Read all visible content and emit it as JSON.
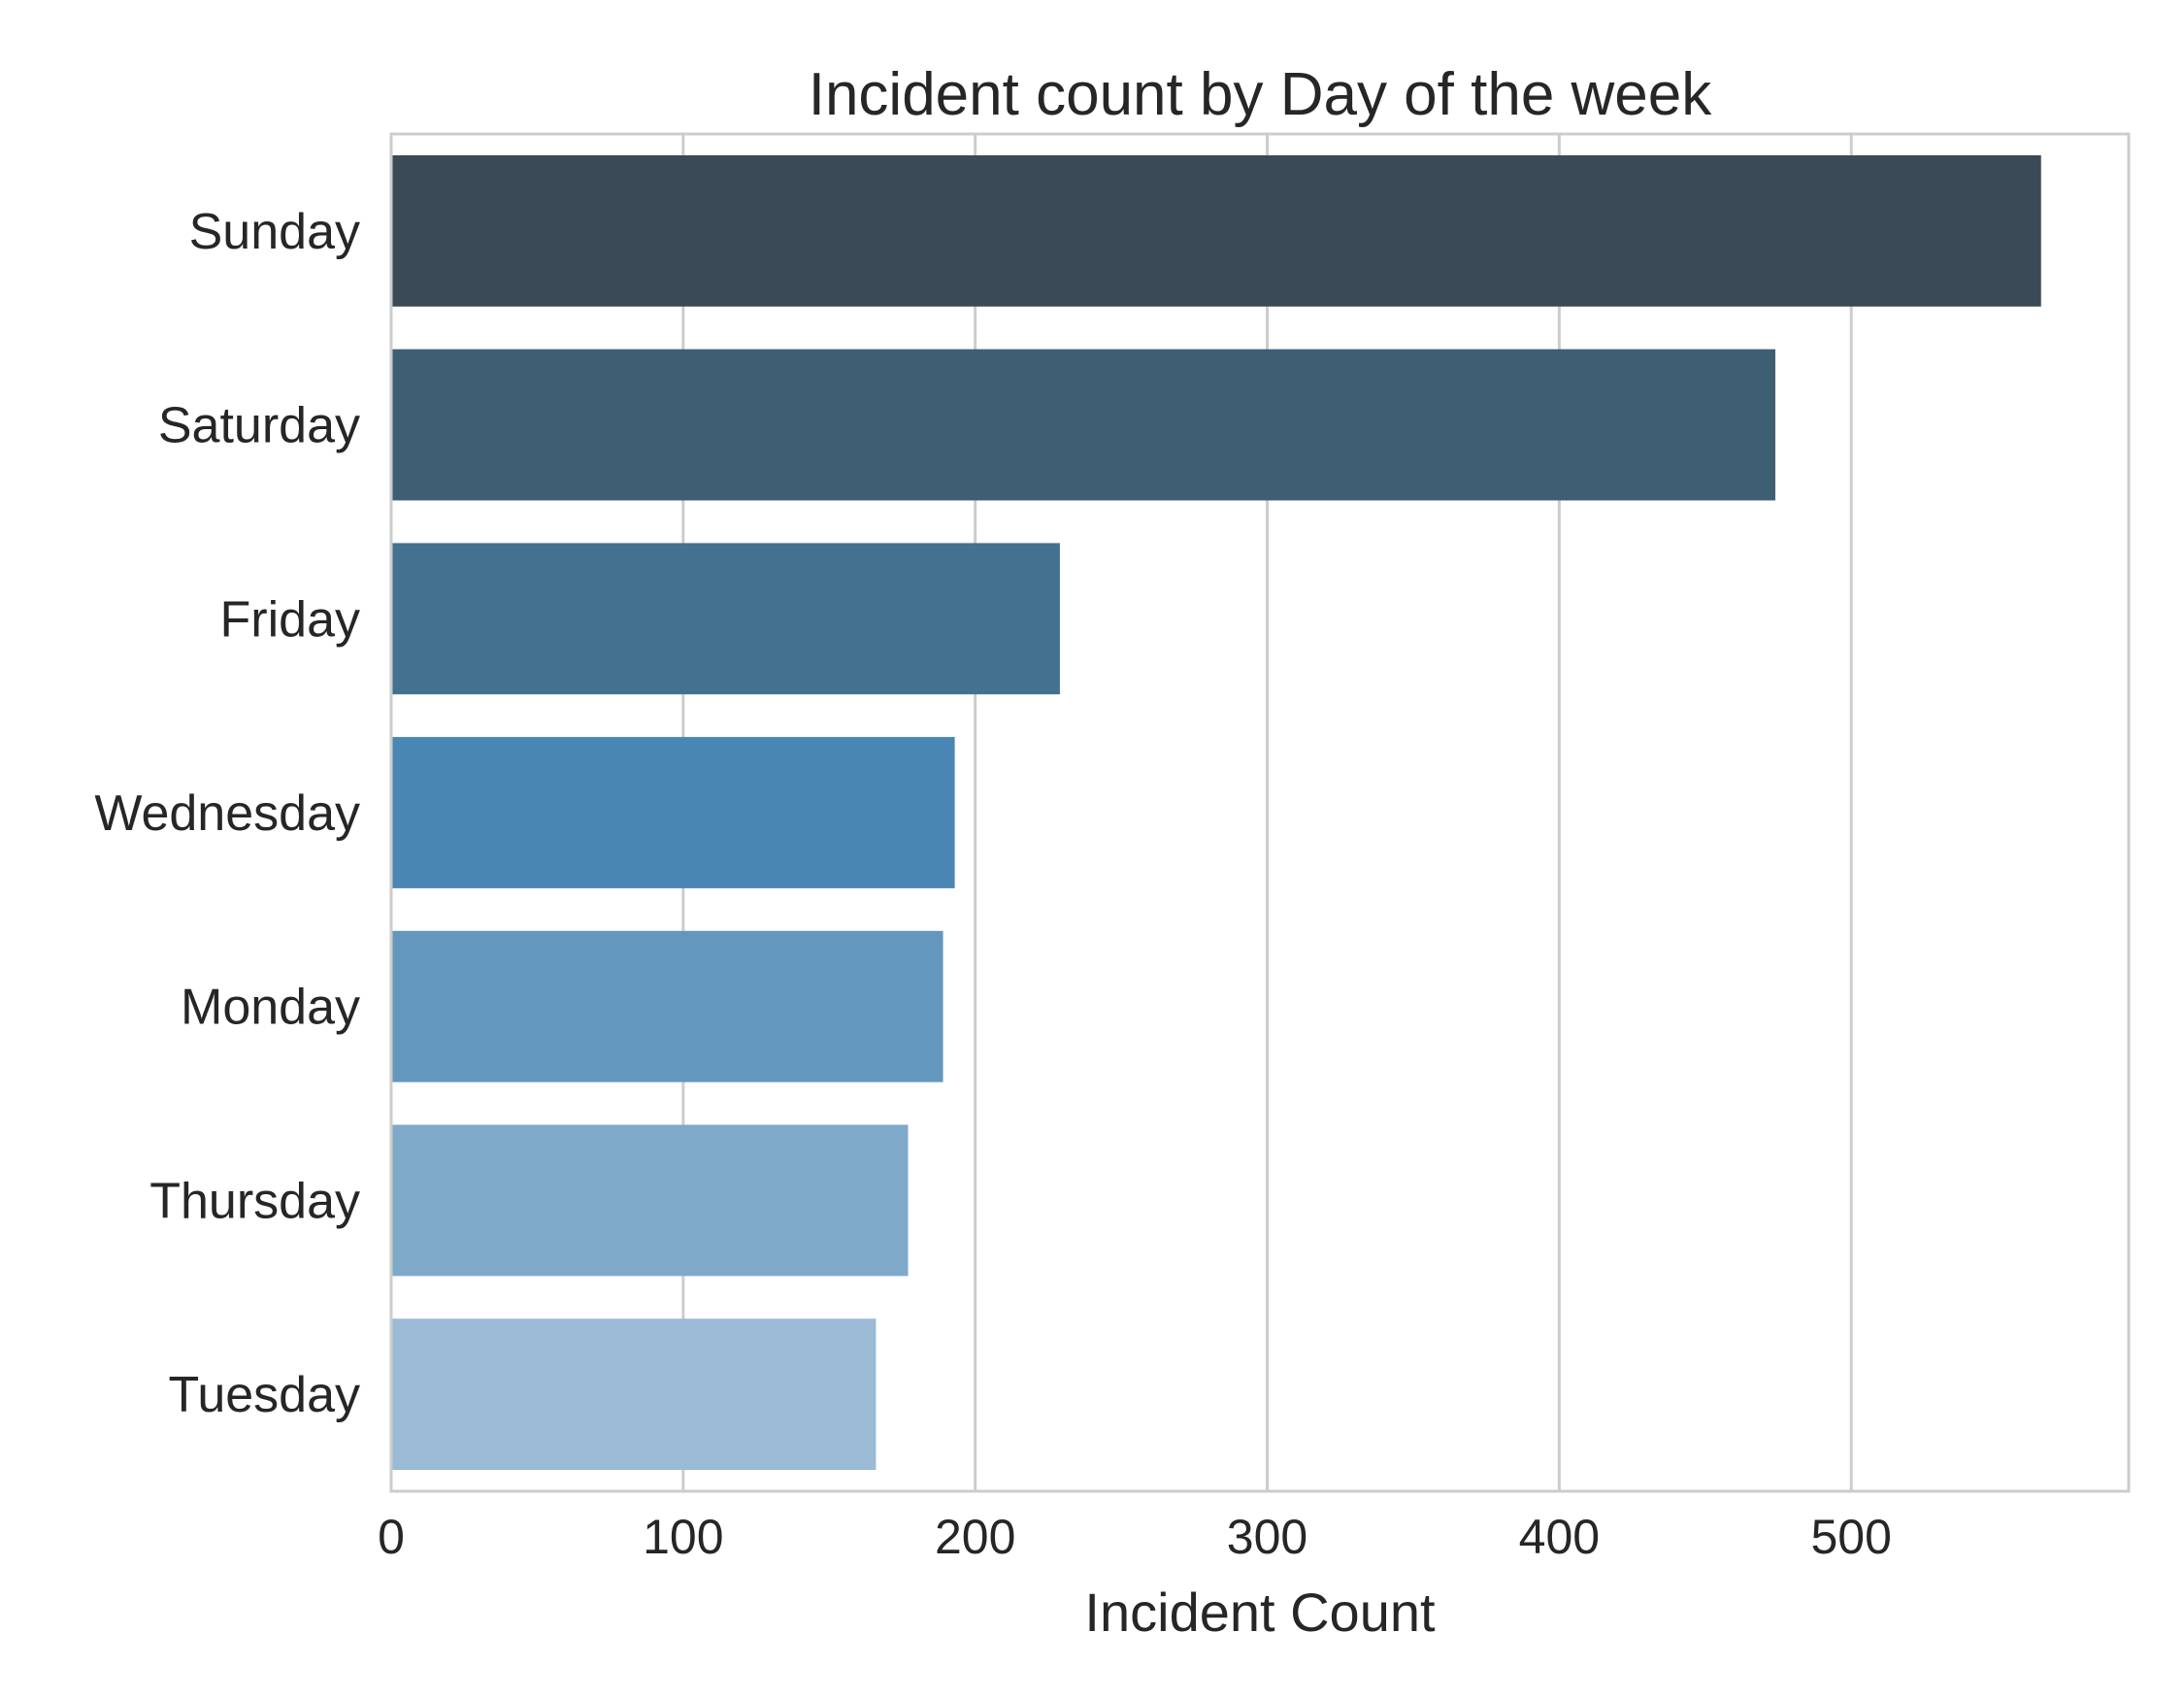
{
  "chart_data": {
    "type": "bar",
    "orientation": "horizontal",
    "title": "Incident count by Day of the week",
    "xlabel": "Incident Count",
    "ylabel": "",
    "categories": [
      "Sunday",
      "Saturday",
      "Friday",
      "Wednesday",
      "Monday",
      "Thursday",
      "Tuesday"
    ],
    "values": [
      565,
      474,
      229,
      193,
      189,
      177,
      166
    ],
    "colors": [
      "#3a4a56",
      "#3e5e74",
      "#43718f",
      "#4a86b3",
      "#6497bd",
      "#7fa9c9",
      "#9abad5"
    ],
    "xlim": [
      0,
      595
    ],
    "xticks": [
      "0",
      "100",
      "200",
      "300",
      "400",
      "500"
    ],
    "xtick_values": [
      0,
      100,
      200,
      300,
      400,
      500
    ],
    "grid": "vertical",
    "legend": "none"
  }
}
